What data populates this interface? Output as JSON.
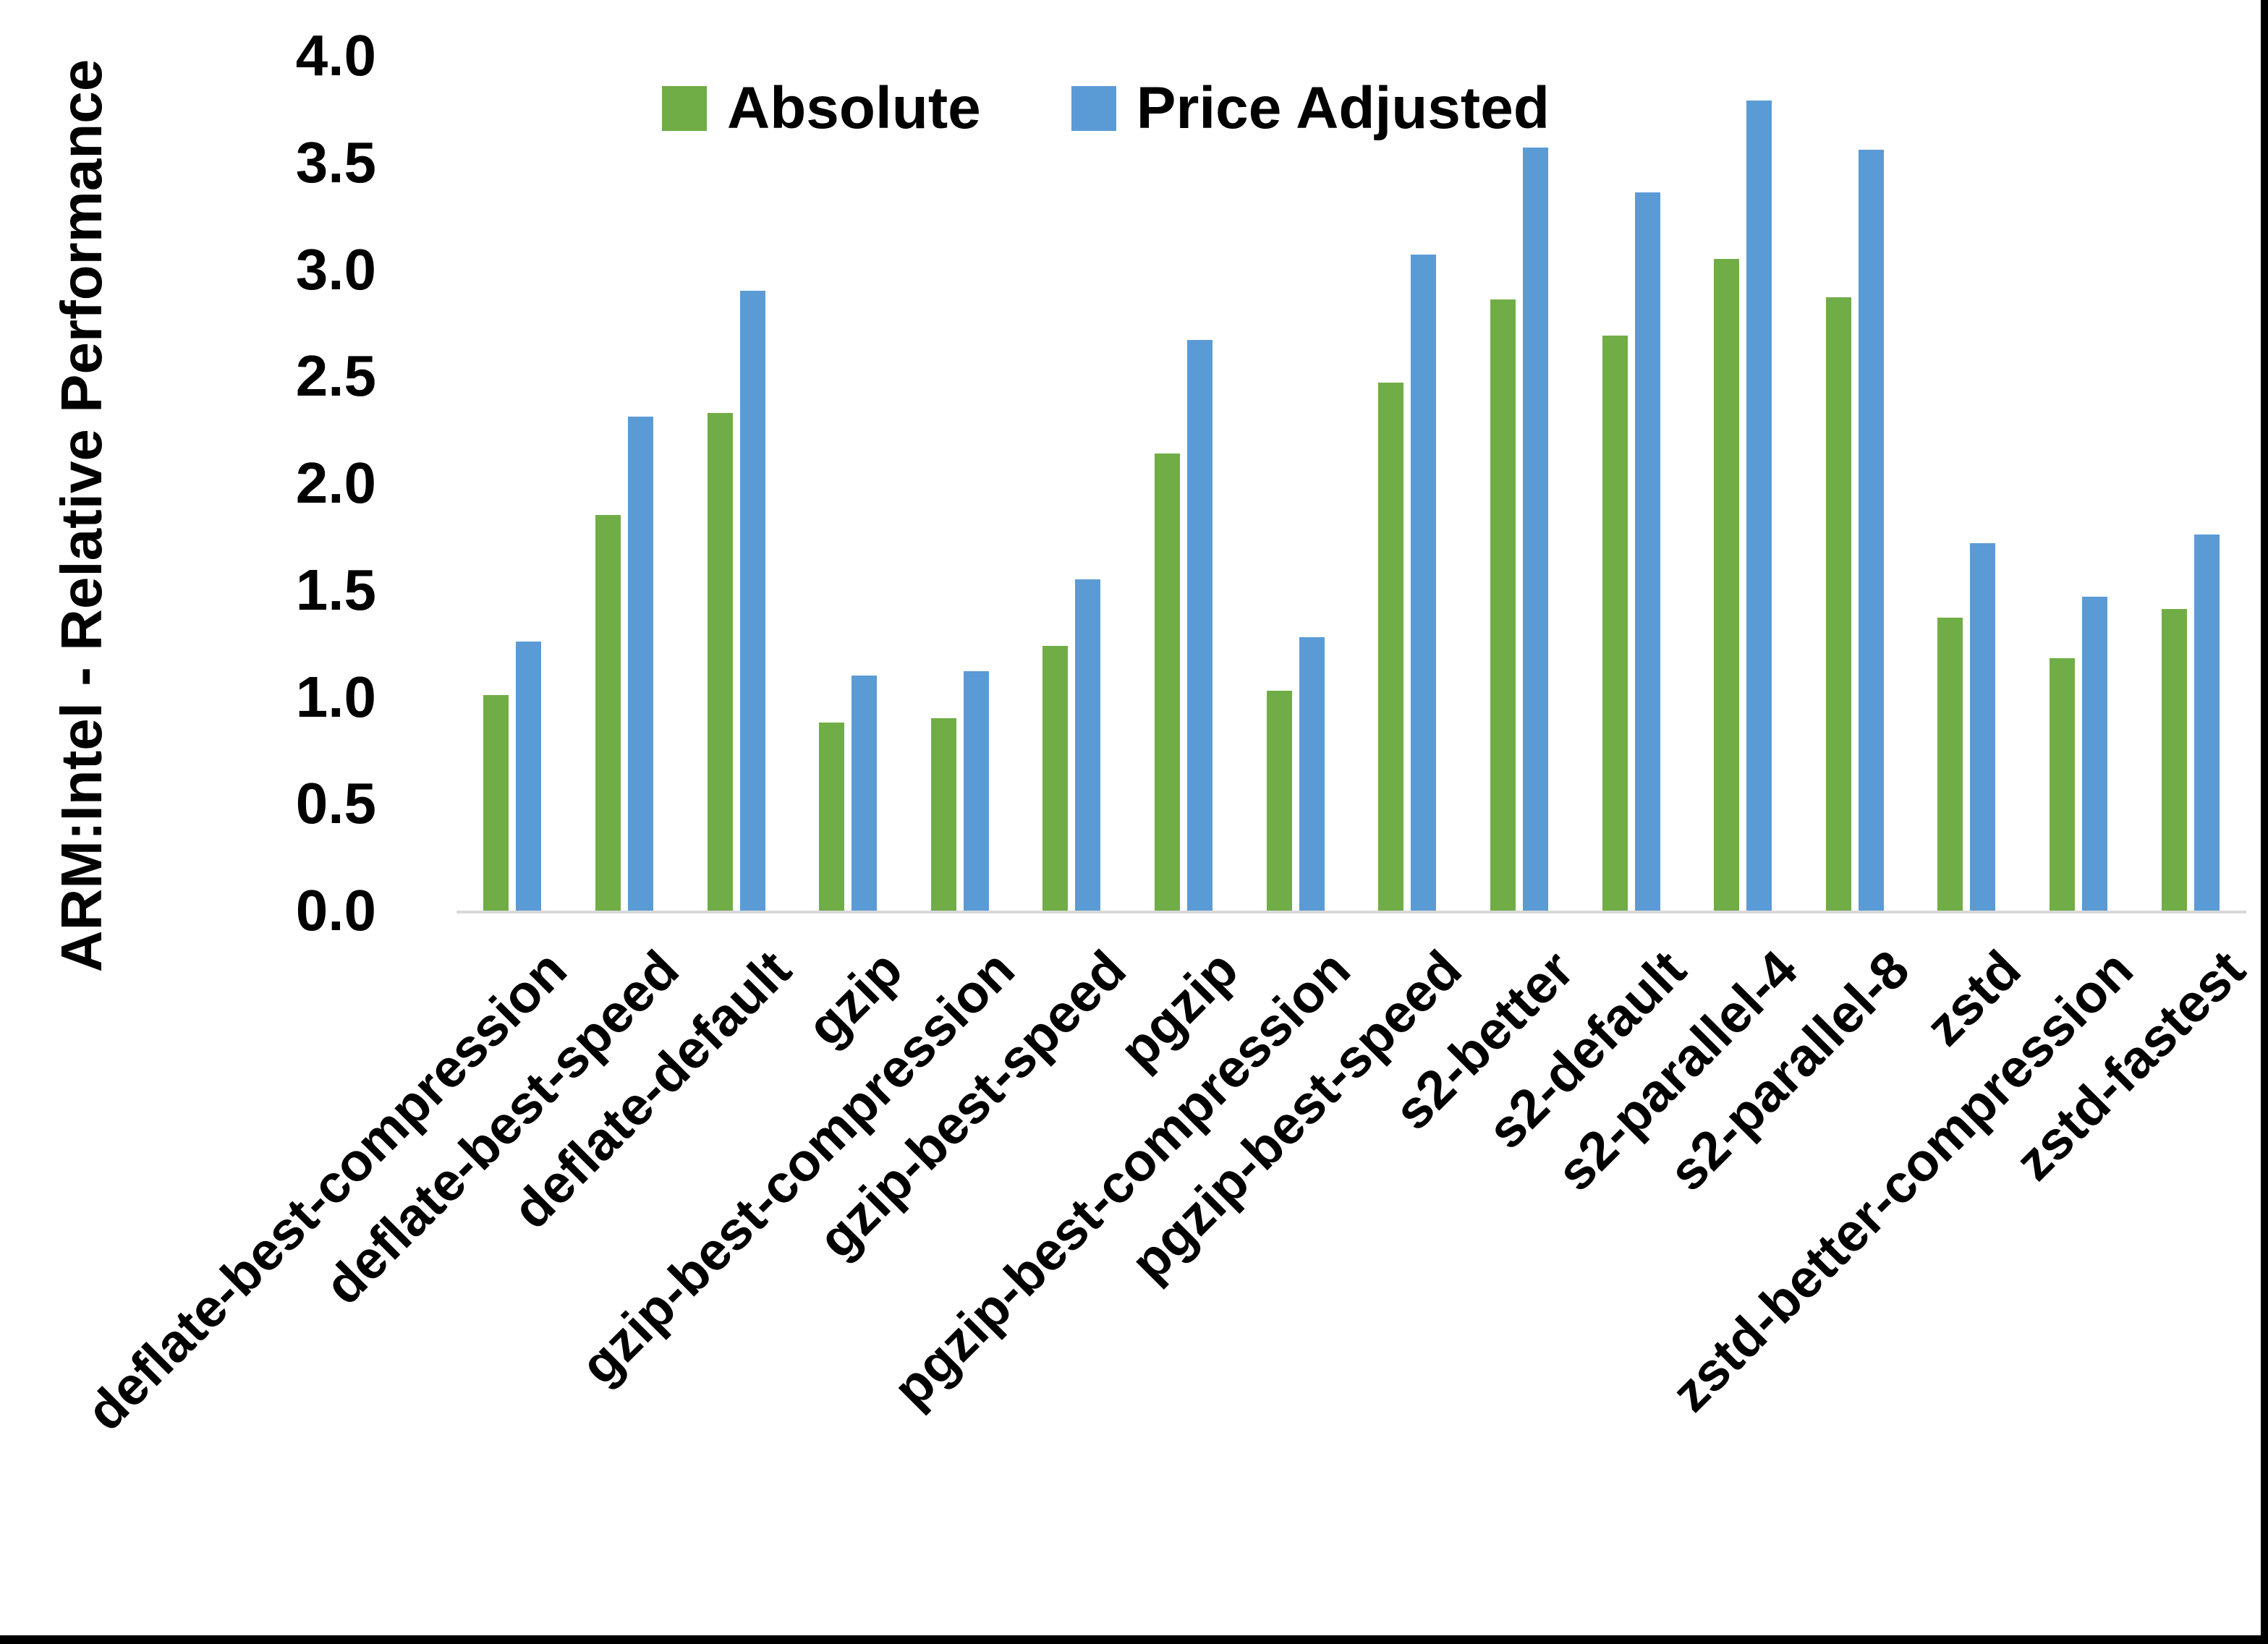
{
  "chart_data": {
    "type": "bar",
    "title": "",
    "ylabel": "ARM:Intel - Relative Performance",
    "xlabel": "",
    "ylim": [
      0,
      4
    ],
    "ytick_step": 0.5,
    "ytick_labels": [
      "0.0",
      "0.5",
      "1.0",
      "1.5",
      "2.0",
      "2.5",
      "3.0",
      "3.5",
      "4.0"
    ],
    "grid": false,
    "legend_position": "top-center",
    "categories": [
      "deflate-best-compression",
      "deflate-best-speed",
      "deflate-default",
      "gzip",
      "gzip-best-compression",
      "gzip-best-speed",
      "pgzip",
      "pgzip-best-compression",
      "pgzip-best-speed",
      "s2-better",
      "s2-default",
      "s2-parallel-4",
      "s2-parallel-8",
      "zstd",
      "zstd-better-compression",
      "zstd-fastest"
    ],
    "series": [
      {
        "name": "Absolute",
        "color": "#70AD47",
        "values": [
          1.01,
          1.85,
          2.33,
          0.88,
          0.9,
          1.24,
          2.14,
          1.03,
          2.47,
          2.86,
          2.69,
          3.05,
          2.87,
          1.37,
          1.18,
          1.41
        ]
      },
      {
        "name": "Price Adjusted",
        "color": "#5B9BD5",
        "values": [
          1.26,
          2.31,
          2.9,
          1.1,
          1.12,
          1.55,
          2.67,
          1.28,
          3.07,
          3.57,
          3.36,
          3.79,
          3.56,
          1.72,
          1.47,
          1.76
        ]
      }
    ]
  },
  "colors": {
    "axis_line": "#D9D9D9",
    "text": "#000000",
    "background": "#FFFFFF",
    "screenshot_edge": "#000000"
  }
}
